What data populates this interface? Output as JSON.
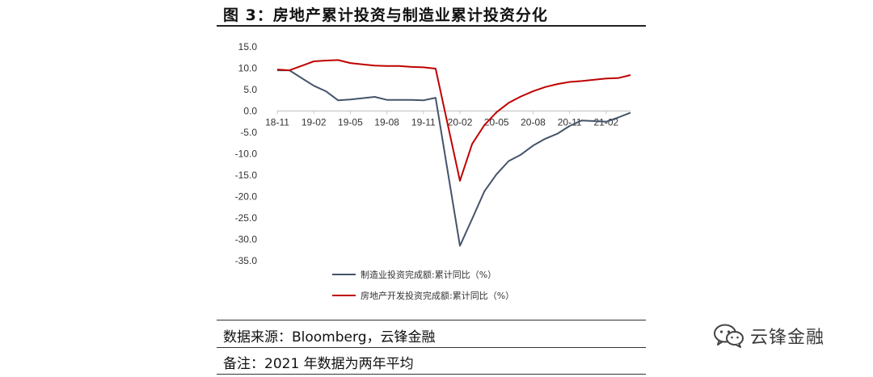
{
  "figure": {
    "title": "图 3：房地产累计投资与制造业累计投资分化",
    "source": "数据来源：Bloomberg，云锋金融",
    "note": "备注：2021 年数据为两年平均"
  },
  "watermark": {
    "text": "云锋金融",
    "icon": "wechat-icon"
  },
  "chart_data": {
    "type": "line",
    "x": [
      "18-11",
      "18-12",
      "19-01",
      "19-02",
      "19-03",
      "19-04",
      "19-05",
      "19-06",
      "19-07",
      "19-08",
      "19-09",
      "19-10",
      "19-11",
      "19-12",
      "20-01",
      "20-02",
      "20-03",
      "20-04",
      "20-05",
      "20-06",
      "20-07",
      "20-08",
      "20-09",
      "20-10",
      "20-11",
      "20-12",
      "21-01",
      "21-02",
      "21-03",
      "21-04"
    ],
    "x_tick_labels": [
      "18-11",
      "19-02",
      "19-05",
      "19-08",
      "19-11",
      "20-02",
      "20-05",
      "20-08",
      "20-11",
      "21-02"
    ],
    "yticks": [
      "15.0",
      "10.0",
      "5.0",
      "0.0",
      "-5.0",
      "-10.0",
      "-15.0",
      "-20.0",
      "-25.0",
      "-30.0",
      "-35.0"
    ],
    "ylim": [
      -35,
      15
    ],
    "series": [
      {
        "name": "制造业投资完成额:累计同比（%）",
        "color": "#44546a",
        "values": [
          9.5,
          9.5,
          null,
          5.9,
          4.6,
          2.5,
          2.7,
          3.0,
          3.3,
          2.6,
          2.6,
          2.6,
          2.5,
          3.1,
          null,
          -31.5,
          -25.2,
          -18.8,
          -14.8,
          -11.7,
          -10.2,
          -8.1,
          -6.5,
          -5.3,
          -3.5,
          -2.2,
          null,
          -2.5,
          -1.5,
          -0.4
        ]
      },
      {
        "name": "房地产开发投资完成额:累计同比（%）",
        "color": "#c00000",
        "values": [
          9.7,
          9.5,
          null,
          11.6,
          11.8,
          11.9,
          11.2,
          10.9,
          10.6,
          10.5,
          10.5,
          10.3,
          10.2,
          9.9,
          null,
          -16.3,
          -7.7,
          -3.3,
          -0.3,
          1.9,
          3.4,
          4.6,
          5.6,
          6.3,
          6.8,
          7.0,
          null,
          7.6,
          7.7,
          8.4
        ]
      }
    ],
    "legend": "bottom"
  }
}
